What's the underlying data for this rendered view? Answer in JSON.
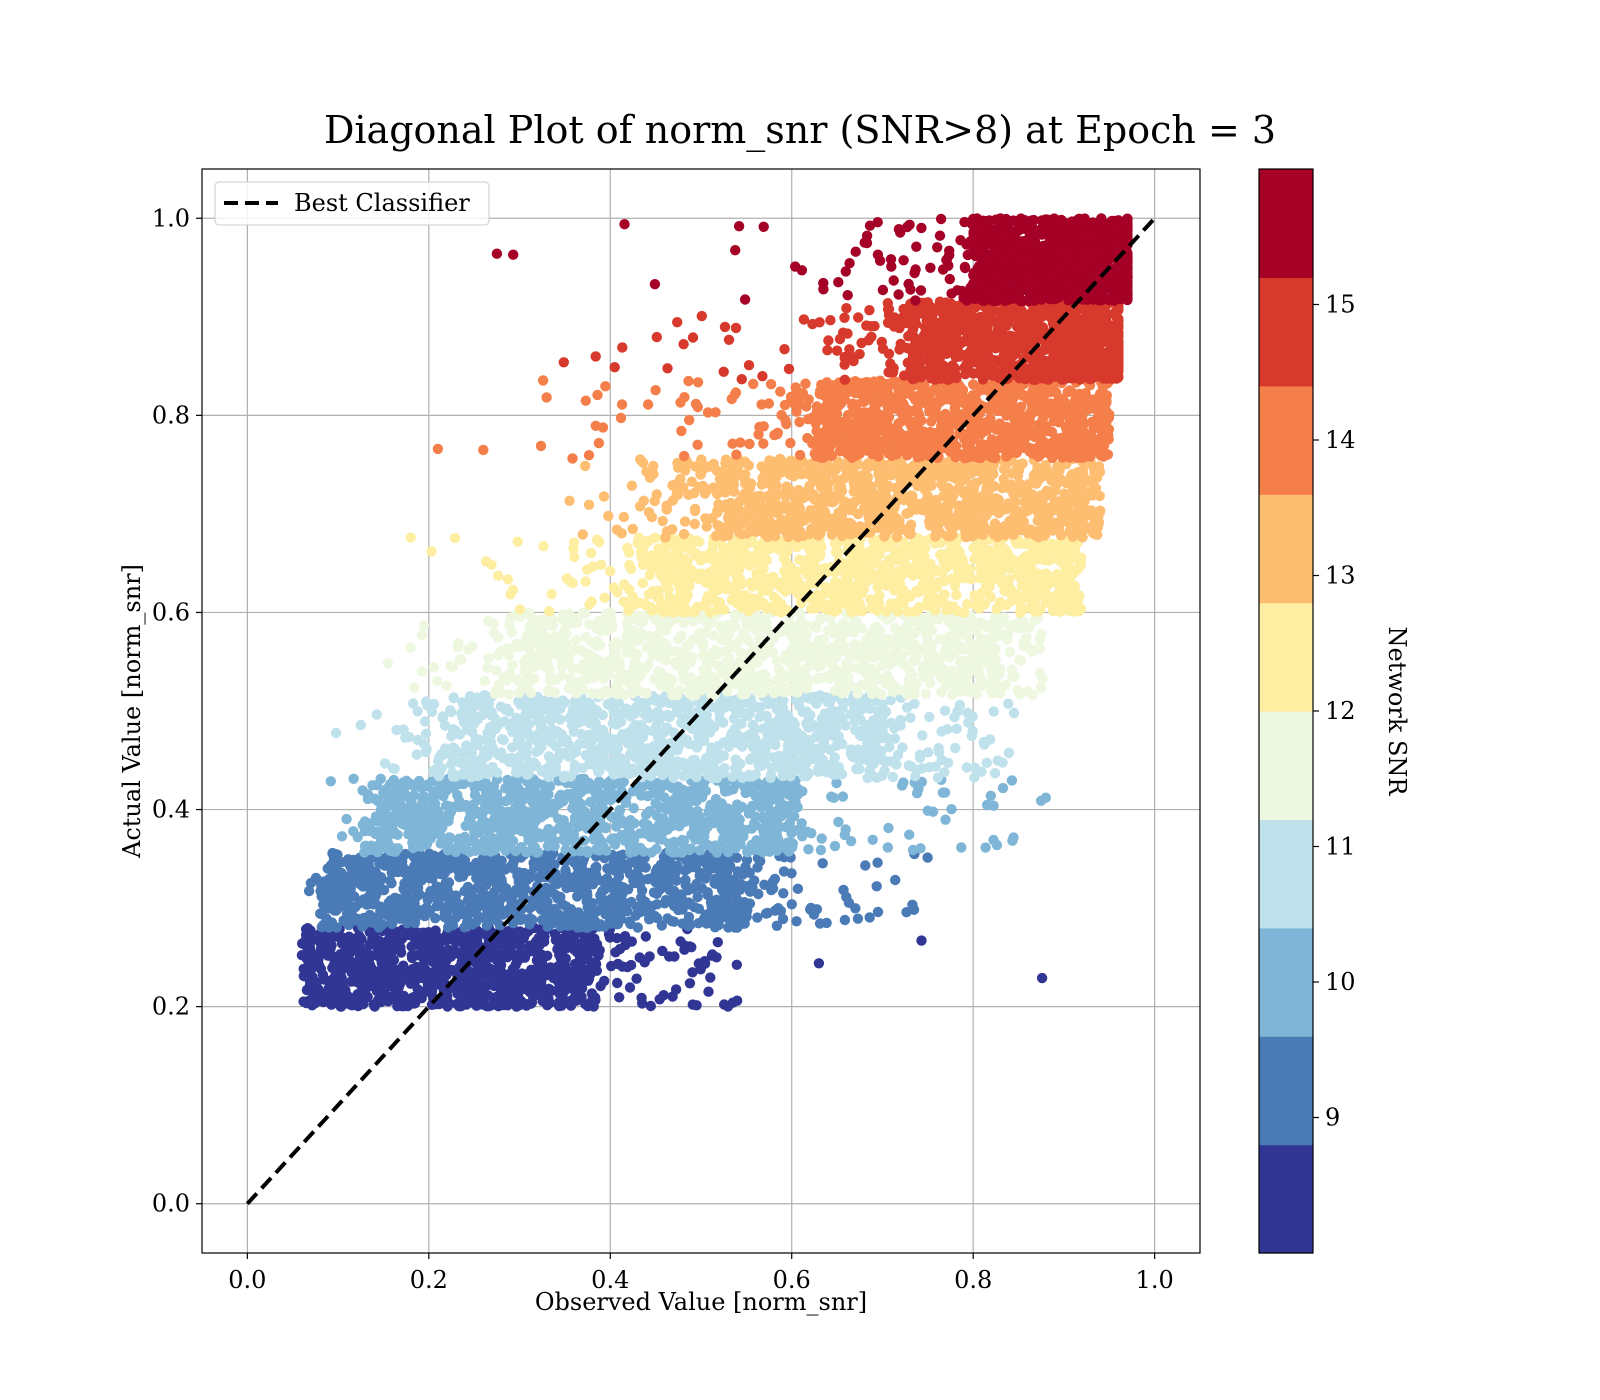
{
  "chart_data": {
    "type": "scatter",
    "title": "Diagonal Plot of norm_snr (SNR>8) at Epoch = 3",
    "xlabel": "Observed Value [norm_snr]",
    "ylabel": "Actual Value [norm_snr]",
    "xlim": [
      -0.05,
      1.05
    ],
    "ylim": [
      -0.05,
      1.05
    ],
    "x_ticks": [
      "0.0",
      "0.2",
      "0.4",
      "0.6",
      "0.8",
      "1.0"
    ],
    "y_ticks": [
      "0.0",
      "0.2",
      "0.4",
      "0.6",
      "0.8",
      "1.0"
    ],
    "grid": true,
    "legend": {
      "position": "top-left",
      "entries": [
        "Best Classifier"
      ]
    },
    "reference_line": {
      "name": "Best Classifier",
      "style": "dashed",
      "color": "#000000",
      "x": [
        0.0,
        1.0
      ],
      "y": [
        0.0,
        1.0
      ]
    },
    "colorbar": {
      "label": "Network SNR",
      "range": [
        8,
        16
      ],
      "tick_values": [
        9,
        10,
        11,
        12,
        13,
        14,
        15
      ],
      "tick_labels": [
        "9",
        "10",
        "11",
        "12",
        "13",
        "14",
        "15"
      ],
      "band_colors": [
        "#313695",
        "#4a7bb7",
        "#7fb5d6",
        "#bfe1ec",
        "#eef7e0",
        "#feeea2",
        "#fdbe71",
        "#f57f4a",
        "#d73a2c",
        "#a50026"
      ]
    },
    "snr_bands": [
      {
        "snr": [
          8.0,
          8.8
        ],
        "y_range": [
          0.2,
          0.28
        ],
        "x_core": [
          0.07,
          0.38
        ],
        "x_scatter": [
          0.055,
          0.54
        ]
      },
      {
        "snr": [
          8.8,
          9.6
        ],
        "y_range": [
          0.28,
          0.356
        ],
        "x_core": [
          0.1,
          0.55
        ],
        "x_scatter": [
          0.06,
          0.75
        ]
      },
      {
        "snr": [
          9.6,
          10.4
        ],
        "y_range": [
          0.356,
          0.432
        ],
        "x_core": [
          0.16,
          0.6
        ],
        "x_scatter": [
          0.07,
          0.88
        ]
      },
      {
        "snr": [
          10.4,
          11.2
        ],
        "y_range": [
          0.432,
          0.516
        ],
        "x_core": [
          0.24,
          0.7
        ],
        "x_scatter": [
          0.09,
          0.84
        ]
      },
      {
        "snr": [
          11.2,
          12.0
        ],
        "y_range": [
          0.516,
          0.6
        ],
        "x_core": [
          0.31,
          0.82
        ],
        "x_scatter": [
          0.13,
          0.88
        ]
      },
      {
        "snr": [
          12.0,
          12.8
        ],
        "y_range": [
          0.6,
          0.676
        ],
        "x_core": [
          0.45,
          0.9
        ],
        "x_scatter": [
          0.18,
          0.92
        ]
      },
      {
        "snr": [
          12.8,
          13.6
        ],
        "y_range": [
          0.676,
          0.756
        ],
        "x_core": [
          0.52,
          0.92
        ],
        "x_scatter": [
          0.24,
          0.94
        ]
      },
      {
        "snr": [
          13.6,
          14.4
        ],
        "y_range": [
          0.756,
          0.836
        ],
        "x_core": [
          0.63,
          0.94
        ],
        "x_scatter": [
          0.21,
          0.95
        ]
      },
      {
        "snr": [
          14.4,
          15.2
        ],
        "y_range": [
          0.836,
          0.916
        ],
        "x_core": [
          0.73,
          0.96
        ],
        "x_scatter": [
          0.28,
          0.96
        ]
      },
      {
        "snr": [
          15.2,
          16.0
        ],
        "y_range": [
          0.916,
          1.0
        ],
        "x_core": [
          0.8,
          0.97
        ],
        "x_scatter": [
          0.27,
          0.97
        ]
      }
    ],
    "outlier_points": [
      {
        "x": 0.876,
        "y": 0.229,
        "snr": 8.4
      },
      {
        "x": 0.743,
        "y": 0.267,
        "snr": 8.4
      },
      {
        "x": 0.63,
        "y": 0.244,
        "snr": 8.4
      },
      {
        "x": 0.535,
        "y": 0.204,
        "snr": 8.4
      },
      {
        "x": 0.88,
        "y": 0.412,
        "snr": 10.0
      },
      {
        "x": 0.845,
        "y": 0.498,
        "snr": 10.8
      },
      {
        "x": 0.275,
        "y": 0.964,
        "snr": 15.6
      },
      {
        "x": 0.293,
        "y": 0.963,
        "snr": 15.6
      },
      {
        "x": 0.542,
        "y": 0.992,
        "snr": 15.6
      },
      {
        "x": 0.21,
        "y": 0.766,
        "snr": 14.0
      },
      {
        "x": 0.26,
        "y": 0.765,
        "snr": 14.0
      },
      {
        "x": 0.18,
        "y": 0.676,
        "snr": 12.4
      },
      {
        "x": 0.203,
        "y": 0.662,
        "snr": 12.4
      }
    ]
  }
}
